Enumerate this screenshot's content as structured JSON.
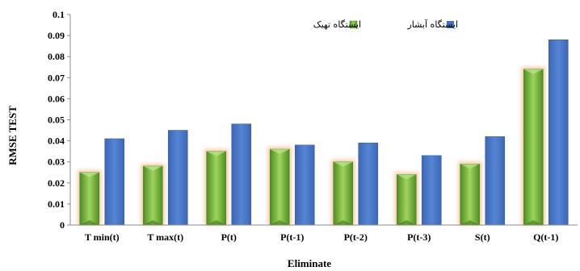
{
  "chart_data": {
    "type": "bar",
    "categories": [
      "T min(t)",
      "T max(t)",
      "P(t)",
      "P(t-1)",
      "P(t-2)",
      "P(t-3)",
      "S(t)",
      "Q(t-1)"
    ],
    "series": [
      {
        "name": "ایستگاه تهیک",
        "values": [
          0.025,
          0.028,
          0.035,
          0.036,
          0.03,
          0.024,
          0.029,
          0.074
        ],
        "color": "#7fba3f",
        "glow": "#f6c9a8"
      },
      {
        "name": "ایستگاه آبشار",
        "values": [
          0.041,
          0.045,
          0.048,
          0.038,
          0.039,
          0.033,
          0.042,
          0.088
        ],
        "color": "#4472c4"
      }
    ],
    "ylim": [
      0,
      0.1
    ],
    "yticks": [
      "0",
      "0.01",
      "0.02",
      "0.03",
      "0.04",
      "0.05",
      "0.06",
      "0.07",
      "0.08",
      "0.09",
      "0.1"
    ],
    "xlabel": "Eliminate",
    "ylabel": "RMSE  TEST",
    "grid": false,
    "legend_position": "top-right"
  }
}
